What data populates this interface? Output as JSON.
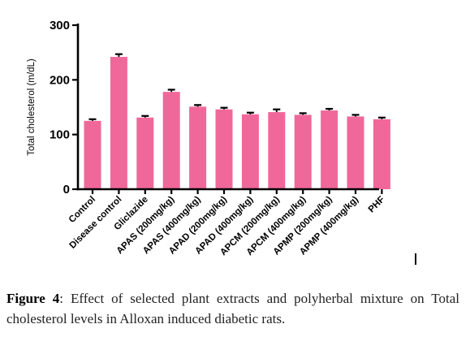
{
  "chart_data": {
    "type": "bar",
    "title": "",
    "xlabel": "",
    "ylabel": "Total cholesterol (m/dL)",
    "ylim": [
      0,
      300
    ],
    "yticks": [
      "0",
      "100",
      "200",
      "300"
    ],
    "categories": [
      "Control",
      "Disease control",
      "Gliclazide",
      "APAS (200mg/kg)",
      "APAS (400mg/kg)",
      "APAD (200mg/kg)",
      "APAD (400mg/kg)",
      "APCM (200mg/kg)",
      "APCM (400mg/kg)",
      "APMP (200mg/kg)",
      "APMP (400mg/kg)",
      "PHF"
    ],
    "values": [
      125,
      242,
      131,
      178,
      151,
      146,
      137,
      141,
      136,
      144,
      133,
      128
    ],
    "errors": [
      3,
      5,
      3,
      4,
      3,
      3,
      3,
      5,
      3,
      3,
      3,
      3
    ],
    "bar_color": "#f0689a",
    "grid": false,
    "legend": "none"
  },
  "caption": {
    "label": "Figure 4",
    "text": ": Effect of selected plant extracts and polyherbal mixture on Total cholesterol levels in Alloxan induced diabetic rats."
  }
}
